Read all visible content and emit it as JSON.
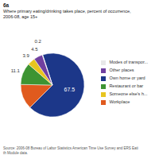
{
  "chart_data": {
    "type": "pie",
    "title": "6a",
    "subtitle": "Where primary eating/drinking takes place, percent of occurrence,\n2006-08, age 15+",
    "categories": [
      "Own home or yard",
      "Workplace",
      "Restaurant or bar",
      "Someone else's h...",
      "Other places",
      "Modes of transpor..."
    ],
    "values": [
      67.5,
      12.8,
      11.1,
      3.9,
      4.5,
      0.2
    ],
    "colors": [
      "#1c3789",
      "#e05a1e",
      "#3d9432",
      "#e8c520",
      "#7040a0",
      "#e8e8e8"
    ],
    "data_labels": true,
    "value_labels": [
      "67.5",
      null,
      "11.1",
      "3.9",
      "4.5",
      "0.2"
    ],
    "legend": "right",
    "annotations": [
      "Source: 2006-08 Bureau of Labor Statistics American Time Use Survey and ERS Eati\nth Module data."
    ]
  }
}
